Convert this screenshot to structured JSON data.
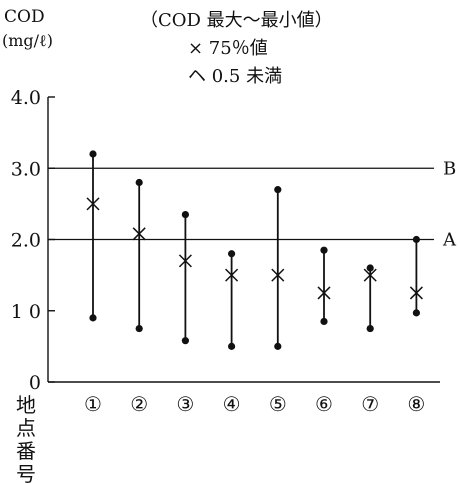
{
  "chart_data": {
    "type": "range",
    "ylabel_line1": "COD",
    "ylabel_line2": "(mg/ℓ)",
    "legend": {
      "title": "（COD 最大〜最小値）",
      "mean_label": "× 75％値",
      "below_label": "ヘ 0.5 未満"
    },
    "xlabel_chars": [
      "地",
      "点",
      "番",
      "号"
    ],
    "ylim": [
      0,
      4
    ],
    "yticks": [
      {
        "value": 0,
        "label": "0"
      },
      {
        "value": 1,
        "label": "1 0"
      },
      {
        "value": 2,
        "label": "2.0"
      },
      {
        "value": 3,
        "label": "3.0"
      },
      {
        "value": 4,
        "label": "4.0"
      }
    ],
    "reference_lines": [
      {
        "name": "A",
        "value": 2.0
      },
      {
        "name": "B",
        "value": 3.0
      }
    ],
    "categories": [
      "①",
      "②",
      "③",
      "④",
      "⑤",
      "⑥",
      "⑦",
      "⑧"
    ],
    "max": [
      3.2,
      2.8,
      2.35,
      1.8,
      2.7,
      1.85,
      1.6,
      2.0
    ],
    "min": [
      0.9,
      0.75,
      0.58,
      0.5,
      0.5,
      0.85,
      0.75,
      0.97
    ],
    "p75": [
      2.5,
      2.08,
      1.7,
      1.5,
      1.5,
      1.25,
      1.5,
      1.25
    ]
  }
}
